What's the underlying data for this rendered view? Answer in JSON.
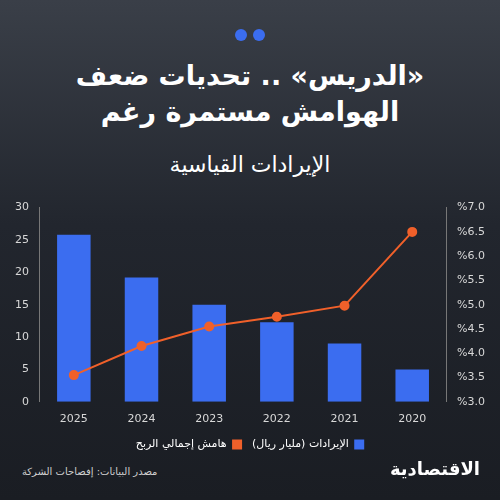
{
  "chart_data": {
    "type": "bar",
    "title": "«الدريس» .. تحديات ضعف الهوامش مستمرة رغم",
    "subtitle": "الإيرادات القياسية",
    "categories": [
      "2025",
      "2024",
      "2023",
      "2022",
      "2021",
      "2020"
    ],
    "series": [
      {
        "name": "الإيرادات (مليار ريال)",
        "type": "bar",
        "color": "#3b6df0",
        "values": [
          25.8,
          19.2,
          15.0,
          12.3,
          9.0,
          5.0
        ]
      },
      {
        "name": "هامش إجمالي الربح",
        "type": "line",
        "axis": "y2",
        "color": "#f0602a",
        "marker": "circle",
        "values": [
          3.55,
          4.15,
          4.55,
          4.75,
          4.98,
          6.5
        ]
      }
    ],
    "ylim": [
      0,
      30
    ],
    "yticks": [
      0,
      5,
      10,
      15,
      20,
      25,
      30
    ],
    "y2lim": [
      3,
      7
    ],
    "y2ticks": [
      {
        "value": 3,
        "label": "%3.0"
      },
      {
        "value": 3.5,
        "label": "%3.5"
      },
      {
        "value": 4,
        "label": "%4.0"
      },
      {
        "value": 4.5,
        "label": "%4.5"
      },
      {
        "value": 5,
        "label": "%5.0"
      },
      {
        "value": 5.5,
        "label": "%5.5"
      },
      {
        "value": 6,
        "label": "%6.0"
      },
      {
        "value": 6.5,
        "label": "%6.5"
      },
      {
        "value": 7,
        "label": "%7.0"
      }
    ],
    "grid": false,
    "legend": "bottom",
    "annotations": [
      "مصدر البيانات: إفصاحات الشركة",
      "الاقتصادية"
    ]
  }
}
